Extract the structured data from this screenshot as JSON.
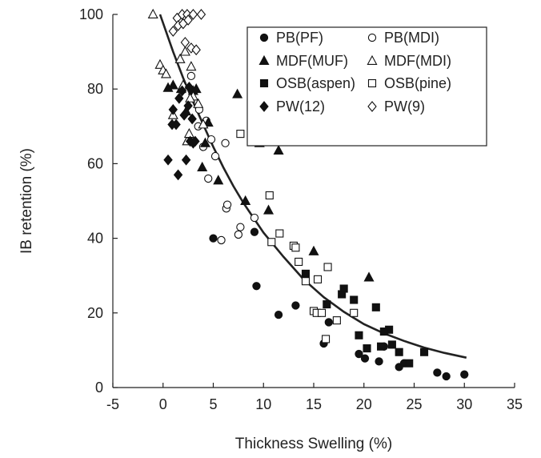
{
  "chart_data": {
    "type": "scatter",
    "xlabel": "Thickness Swelling (%)",
    "ylabel": "IB retention (%)",
    "xlim": [
      -5,
      35
    ],
    "ylim": [
      0,
      100
    ],
    "xticks": [
      "-5",
      "0",
      "5",
      "10",
      "15",
      "20",
      "25",
      "30",
      "35"
    ],
    "yticks": [
      "0",
      "20",
      "40",
      "60",
      "80",
      "100"
    ],
    "grid": false,
    "legend_placement": "top-right",
    "series": [
      {
        "name": "PB(PF)",
        "marker": "circle-filled",
        "points": [
          [
            5,
            40
          ],
          [
            9.1,
            41.7
          ],
          [
            9.3,
            27.2
          ],
          [
            11.5,
            19.5
          ],
          [
            13.2,
            22
          ],
          [
            16,
            11.8
          ],
          [
            16.5,
            17.5
          ],
          [
            19.5,
            9
          ],
          [
            20.1,
            7.8
          ],
          [
            21.5,
            7
          ],
          [
            22,
            11
          ],
          [
            23.5,
            5.5
          ],
          [
            24,
            6.5
          ],
          [
            27.3,
            4
          ],
          [
            28.2,
            3
          ],
          [
            30,
            3.5
          ]
        ]
      },
      {
        "name": "PB(MDI)",
        "marker": "circle-open",
        "points": [
          [
            2.8,
            83.5
          ],
          [
            3.5,
            70
          ],
          [
            4,
            64.5
          ],
          [
            4.3,
            71.5
          ],
          [
            4.5,
            56
          ],
          [
            4.8,
            66.5
          ],
          [
            5.2,
            62
          ],
          [
            5.8,
            39.5
          ],
          [
            6.2,
            65.5
          ],
          [
            6.3,
            48
          ],
          [
            6.4,
            49
          ],
          [
            7.5,
            41
          ],
          [
            7.7,
            43
          ],
          [
            9.1,
            45.5
          ],
          [
            3.6,
            74.5
          ]
        ]
      },
      {
        "name": "MDF(MUF)",
        "marker": "triangle-filled",
        "points": [
          [
            0.5,
            80.3
          ],
          [
            1,
            81
          ],
          [
            1.8,
            80
          ],
          [
            2.3,
            74
          ],
          [
            2.6,
            67
          ],
          [
            3,
            79.5
          ],
          [
            3.3,
            80
          ],
          [
            3.9,
            59
          ],
          [
            4.2,
            65.5
          ],
          [
            4.5,
            71
          ],
          [
            5.5,
            55.5
          ],
          [
            7.4,
            78.6
          ],
          [
            8.2,
            50
          ],
          [
            9.1,
            73.5
          ],
          [
            9.6,
            65.5
          ],
          [
            10.5,
            47.5
          ],
          [
            11.5,
            63.5
          ],
          [
            15,
            36.5
          ],
          [
            20.5,
            29.5
          ]
        ]
      },
      {
        "name": "MDF(MDI)",
        "marker": "triangle-open",
        "points": [
          [
            -1,
            100
          ],
          [
            -0.3,
            86.5
          ],
          [
            0,
            85
          ],
          [
            0.3,
            84
          ],
          [
            1,
            73
          ],
          [
            1.7,
            88
          ],
          [
            2,
            81
          ],
          [
            2.2,
            90
          ],
          [
            2.4,
            66
          ],
          [
            2.6,
            68
          ],
          [
            2.8,
            86
          ],
          [
            3,
            78
          ],
          [
            3.5,
            76
          ],
          [
            2.7,
            77.5
          ],
          [
            4,
            70.5
          ]
        ]
      },
      {
        "name": "OSB(aspen)",
        "marker": "square-filled",
        "points": [
          [
            14.2,
            30.5
          ],
          [
            17.8,
            25
          ],
          [
            18,
            26.5
          ],
          [
            19,
            23.5
          ],
          [
            19.5,
            14
          ],
          [
            20.3,
            10.5
          ],
          [
            21.2,
            21.5
          ],
          [
            21.7,
            11
          ],
          [
            22.5,
            15.5
          ],
          [
            22.8,
            11.5
          ],
          [
            23.5,
            9.5
          ],
          [
            24.5,
            6.5
          ],
          [
            26,
            9.5
          ],
          [
            16.3,
            22.3
          ],
          [
            22,
            15
          ]
        ]
      },
      {
        "name": "OSB(pine)",
        "marker": "square-open",
        "points": [
          [
            7.7,
            68
          ],
          [
            10.6,
            51.5
          ],
          [
            10.8,
            39
          ],
          [
            11.6,
            41.3
          ],
          [
            13,
            38
          ],
          [
            13.2,
            37.5
          ],
          [
            13.5,
            33.7
          ],
          [
            14.2,
            28.5
          ],
          [
            15,
            20.5
          ],
          [
            15.3,
            20
          ],
          [
            15.4,
            29
          ],
          [
            15.8,
            20
          ],
          [
            16.2,
            13
          ],
          [
            16.4,
            32.3
          ],
          [
            17.3,
            18
          ],
          [
            19,
            20
          ]
        ]
      },
      {
        "name": "PW(12)",
        "marker": "diamond-filled",
        "points": [
          [
            0.5,
            61
          ],
          [
            0.9,
            70.5
          ],
          [
            1,
            74.5
          ],
          [
            1.5,
            57
          ],
          [
            1.3,
            70.5
          ],
          [
            1.9,
            79.5
          ],
          [
            2.1,
            73
          ],
          [
            2.3,
            61
          ],
          [
            2.5,
            75.5
          ],
          [
            2.7,
            66
          ],
          [
            2.9,
            72
          ],
          [
            3,
            65.5
          ],
          [
            3.2,
            66
          ],
          [
            1.6,
            77.5
          ],
          [
            2.6,
            80.5
          ]
        ]
      },
      {
        "name": "PW(9)",
        "marker": "diamond-open",
        "points": [
          [
            1,
            95.5
          ],
          [
            1.4,
            99
          ],
          [
            1.5,
            97
          ],
          [
            1.9,
            100
          ],
          [
            2,
            97.5
          ],
          [
            2.2,
            92.5
          ],
          [
            2.4,
            100
          ],
          [
            2.5,
            98.5
          ],
          [
            2.8,
            91
          ],
          [
            3,
            100
          ],
          [
            3.3,
            90.5
          ],
          [
            3.8,
            100
          ]
        ]
      }
    ],
    "trendline": {
      "points": [
        [
          -0.3,
          100
        ],
        [
          1,
          90
        ],
        [
          2,
          83
        ],
        [
          3,
          76.5
        ],
        [
          4,
          70.5
        ],
        [
          5,
          64.5
        ],
        [
          6,
          59
        ],
        [
          7,
          54
        ],
        [
          8,
          49.5
        ],
        [
          9,
          45.5
        ],
        [
          10,
          41.5
        ],
        [
          12,
          35
        ],
        [
          14,
          29
        ],
        [
          16,
          24.2
        ],
        [
          18,
          20.3
        ],
        [
          20,
          17
        ],
        [
          22,
          14.5
        ],
        [
          24,
          12.5
        ],
        [
          26,
          10.7
        ],
        [
          28,
          9.3
        ],
        [
          30.2,
          8
        ]
      ]
    }
  }
}
